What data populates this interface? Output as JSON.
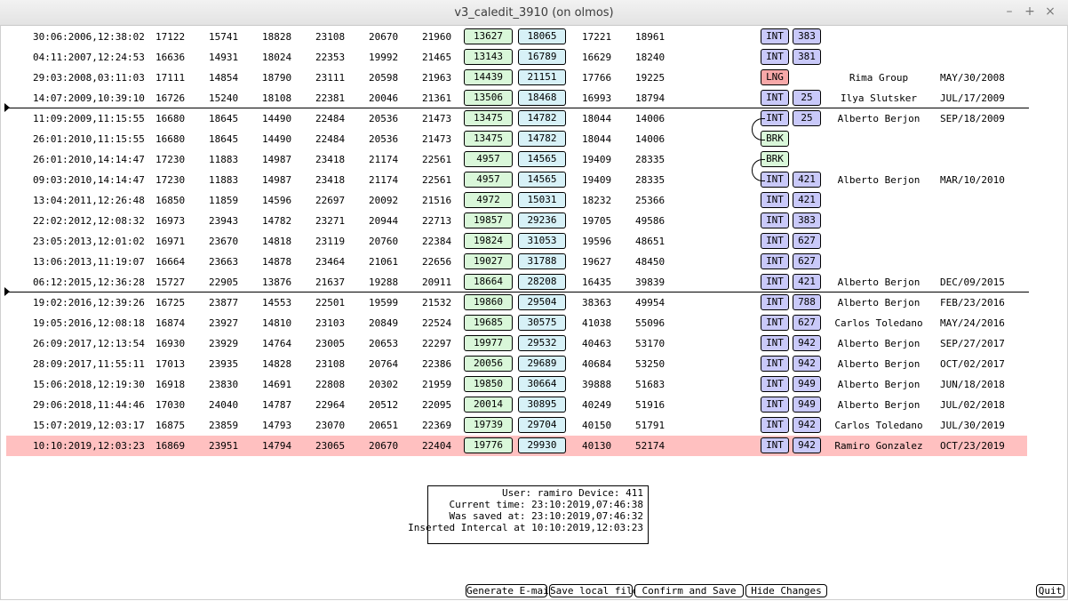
{
  "window": {
    "title": "v3_caledit_3910 (on olmos)",
    "controls": {
      "minimize": "–",
      "maximize": "+",
      "close": "×"
    }
  },
  "rows": [
    {
      "datetime": "30:06:2006,12:38:02",
      "c1": "17122",
      "c2": "15741",
      "c3": "18828",
      "c4": "23108",
      "c5": "20670",
      "c6": "21960",
      "g": "13627",
      "cy": "18065",
      "c7": "17221",
      "c8": "18961",
      "type": "INT",
      "num": "383",
      "user": "",
      "date": ""
    },
    {
      "datetime": "04:11:2007,12:24:53",
      "c1": "16636",
      "c2": "14931",
      "c3": "18024",
      "c4": "22353",
      "c5": "19992",
      "c6": "21465",
      "g": "13143",
      "cy": "16789",
      "c7": "16629",
      "c8": "18240",
      "type": "INT",
      "num": "381",
      "user": "",
      "date": ""
    },
    {
      "datetime": "29:03:2008,03:11:03",
      "c1": "17111",
      "c2": "14854",
      "c3": "18790",
      "c4": "23111",
      "c5": "20598",
      "c6": "21963",
      "g": "14439",
      "cy": "21151",
      "c7": "17766",
      "c8": "19225",
      "type": "LNG",
      "num": "",
      "user": "Rima Group",
      "date": "MAY/30/2008"
    },
    {
      "datetime": "14:07:2009,10:39:10",
      "c1": "16726",
      "c2": "15240",
      "c3": "18108",
      "c4": "22381",
      "c5": "20046",
      "c6": "21361",
      "g": "13506",
      "cy": "18468",
      "c7": "16993",
      "c8": "18794",
      "type": "INT",
      "num": "25",
      "user": "Ilya Slutsker",
      "date": "JUL/17/2009"
    },
    {
      "datetime": "11:09:2009,11:15:55",
      "c1": "16680",
      "c2": "18645",
      "c3": "14490",
      "c4": "22484",
      "c5": "20536",
      "c6": "21473",
      "g": "13475",
      "cy": "14782",
      "c7": "18044",
      "c8": "14006",
      "type": "INT",
      "num": "25",
      "user": "Alberto Berjon",
      "date": "SEP/18/2009"
    },
    {
      "datetime": "26:01:2010,11:15:55",
      "c1": "16680",
      "c2": "18645",
      "c3": "14490",
      "c4": "22484",
      "c5": "20536",
      "c6": "21473",
      "g": "13475",
      "cy": "14782",
      "c7": "18044",
      "c8": "14006",
      "type": "BRK",
      "num": "",
      "user": "",
      "date": ""
    },
    {
      "datetime": "26:01:2010,14:14:47",
      "c1": "17230",
      "c2": "11883",
      "c3": "14987",
      "c4": "23418",
      "c5": "21174",
      "c6": "22561",
      "g": "4957",
      "cy": "14565",
      "c7": "19409",
      "c8": "28335",
      "type": "BRK",
      "num": "",
      "user": "",
      "date": ""
    },
    {
      "datetime": "09:03:2010,14:14:47",
      "c1": "17230",
      "c2": "11883",
      "c3": "14987",
      "c4": "23418",
      "c5": "21174",
      "c6": "22561",
      "g": "4957",
      "cy": "14565",
      "c7": "19409",
      "c8": "28335",
      "type": "INT",
      "num": "421",
      "user": "Alberto Berjon",
      "date": "MAR/10/2010"
    },
    {
      "datetime": "13:04:2011,12:26:48",
      "c1": "16850",
      "c2": "11859",
      "c3": "14596",
      "c4": "22697",
      "c5": "20092",
      "c6": "21516",
      "g": "4972",
      "cy": "15031",
      "c7": "18232",
      "c8": "25366",
      "type": "INT",
      "num": "421",
      "user": "",
      "date": ""
    },
    {
      "datetime": "22:02:2012,12:08:32",
      "c1": "16973",
      "c2": "23943",
      "c3": "14782",
      "c4": "23271",
      "c5": "20944",
      "c6": "22713",
      "g": "19857",
      "cy": "29236",
      "c7": "19705",
      "c8": "49586",
      "type": "INT",
      "num": "383",
      "user": "",
      "date": ""
    },
    {
      "datetime": "23:05:2013,12:01:02",
      "c1": "16971",
      "c2": "23670",
      "c3": "14818",
      "c4": "23119",
      "c5": "20760",
      "c6": "22384",
      "g": "19824",
      "cy": "31053",
      "c7": "19596",
      "c8": "48651",
      "type": "INT",
      "num": "627",
      "user": "",
      "date": ""
    },
    {
      "datetime": "13:06:2013,11:19:07",
      "c1": "16664",
      "c2": "23663",
      "c3": "14878",
      "c4": "23464",
      "c5": "21061",
      "c6": "22656",
      "g": "19027",
      "cy": "31788",
      "c7": "19627",
      "c8": "48450",
      "type": "INT",
      "num": "627",
      "user": "",
      "date": ""
    },
    {
      "datetime": "06:12:2015,12:36:28",
      "c1": "15727",
      "c2": "22905",
      "c3": "13876",
      "c4": "21637",
      "c5": "19288",
      "c6": "20911",
      "g": "18664",
      "cy": "28208",
      "c7": "16435",
      "c8": "39839",
      "type": "INT",
      "num": "421",
      "user": "Alberto Berjon",
      "date": "DEC/09/2015"
    },
    {
      "datetime": "19:02:2016,12:39:26",
      "c1": "16725",
      "c2": "23877",
      "c3": "14553",
      "c4": "22501",
      "c5": "19599",
      "c6": "21532",
      "g": "19860",
      "cy": "29504",
      "c7": "38363",
      "c8": "49954",
      "type": "INT",
      "num": "788",
      "user": "Alberto Berjon",
      "date": "FEB/23/2016"
    },
    {
      "datetime": "19:05:2016,12:08:18",
      "c1": "16874",
      "c2": "23927",
      "c3": "14810",
      "c4": "23103",
      "c5": "20849",
      "c6": "22524",
      "g": "19685",
      "cy": "30575",
      "c7": "41038",
      "c8": "55096",
      "type": "INT",
      "num": "627",
      "user": "Carlos Toledano",
      "date": "MAY/24/2016"
    },
    {
      "datetime": "26:09:2017,12:13:54",
      "c1": "16930",
      "c2": "23929",
      "c3": "14764",
      "c4": "23005",
      "c5": "20653",
      "c6": "22297",
      "g": "19977",
      "cy": "29532",
      "c7": "40463",
      "c8": "53170",
      "type": "INT",
      "num": "942",
      "user": "Alberto Berjon",
      "date": "SEP/27/2017"
    },
    {
      "datetime": "28:09:2017,11:55:11",
      "c1": "17013",
      "c2": "23935",
      "c3": "14828",
      "c4": "23108",
      "c5": "20764",
      "c6": "22386",
      "g": "20056",
      "cy": "29689",
      "c7": "40684",
      "c8": "53250",
      "type": "INT",
      "num": "942",
      "user": "Alberto Berjon",
      "date": "OCT/02/2017"
    },
    {
      "datetime": "15:06:2018,12:19:30",
      "c1": "16918",
      "c2": "23830",
      "c3": "14691",
      "c4": "22808",
      "c5": "20302",
      "c6": "21959",
      "g": "19850",
      "cy": "30664",
      "c7": "39888",
      "c8": "51683",
      "type": "INT",
      "num": "949",
      "user": "Alberto Berjon",
      "date": "JUN/18/2018"
    },
    {
      "datetime": "29:06:2018,11:44:46",
      "c1": "17030",
      "c2": "24040",
      "c3": "14787",
      "c4": "22964",
      "c5": "20512",
      "c6": "22095",
      "g": "20014",
      "cy": "30895",
      "c7": "40249",
      "c8": "51916",
      "type": "INT",
      "num": "949",
      "user": "Alberto Berjon",
      "date": "JUL/02/2018"
    },
    {
      "datetime": "15:07:2019,12:03:17",
      "c1": "16875",
      "c2": "23859",
      "c3": "14793",
      "c4": "23070",
      "c5": "20651",
      "c6": "22369",
      "g": "19739",
      "cy": "29704",
      "c7": "40150",
      "c8": "51791",
      "type": "INT",
      "num": "942",
      "user": "Carlos Toledano",
      "date": "JUL/30/2019"
    },
    {
      "datetime": "10:10:2019,12:03:23",
      "c1": "16869",
      "c2": "23951",
      "c3": "14794",
      "c4": "23065",
      "c5": "20670",
      "c6": "22404",
      "g": "19776",
      "cy": "29930",
      "c7": "40130",
      "c8": "52174",
      "type": "INT",
      "num": "942",
      "user": "Ramiro Gonzalez",
      "date": "OCT/23/2019",
      "highlight": true
    }
  ],
  "info": {
    "line1": "User: ramiro Device: 411",
    "line2": "Current time: 23:10:2019,07:46:38",
    "line3": "Was saved at: 23:10:2019,07:46:32",
    "line4": "Inserted Intercal at 10:10:2019,12:03:23"
  },
  "actions": {
    "email": "Generate E-mail",
    "save_local": "Save local file",
    "confirm": "Confirm and Save",
    "hide": "Hide Changes",
    "quit": "Quit"
  },
  "colors": {
    "int_badge": "#c9c9f9",
    "lng_badge": "#f7a8a8",
    "brk_badge": "#d9f7d9",
    "green_cell": "#d9f7d9",
    "cyan_cell": "#d7f1f7",
    "highlight_row": "#ffc0c0"
  }
}
